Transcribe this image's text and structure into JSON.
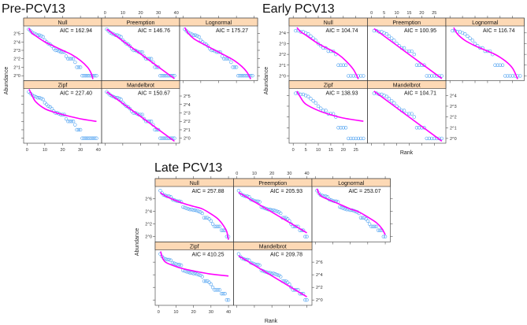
{
  "chart_data": [
    {
      "type": "scatter",
      "title": "Pre-PCV13",
      "ylabel": "Abundance",
      "xlabel": "",
      "xlim": [
        -1,
        41
      ],
      "ylim": [
        -0.4,
        5.7
      ],
      "x_ticks": [
        0,
        10,
        20,
        30,
        40
      ],
      "x_tick_labels": [
        "0",
        "10",
        "20",
        "30",
        "40"
      ],
      "y_ticks": [
        0,
        1,
        2,
        3,
        4,
        5
      ],
      "y_tick_labels": [
        "2^0",
        "2^1",
        "2^2",
        "2^3",
        "2^4",
        "2^5"
      ],
      "observed_log2_abundance": [
        5.5,
        5.3,
        5.1,
        5.0,
        4.9,
        4.8,
        4.8,
        4.7,
        4.6,
        4.2,
        4.0,
        3.8,
        3.7,
        3.5,
        3.2,
        3.0,
        3.0,
        2.9,
        2.8,
        2.8,
        2.8,
        2.3,
        2.0,
        2.0,
        2.0,
        2.0,
        1.6,
        1.0,
        1.0,
        1.0,
        0,
        0,
        0,
        0,
        0,
        0,
        0,
        0,
        0
      ],
      "panels": [
        {
          "name": "Null",
          "aic": "AIC = 162.94",
          "fit": [
            [
              1,
              5.6
            ],
            [
              3,
              5.0
            ],
            [
              5,
              4.7
            ],
            [
              10,
              4.0
            ],
            [
              15,
              3.5
            ],
            [
              20,
              3.0
            ],
            [
              25,
              2.5
            ],
            [
              30,
              1.8
            ],
            [
              34,
              1.0
            ],
            [
              36,
              0.3
            ],
            [
              37,
              -0.4
            ]
          ]
        },
        {
          "name": "Preemption",
          "aic": "AIC = 146.76",
          "fit": [
            [
              1,
              5.5
            ],
            [
              39,
              -0.35
            ]
          ]
        },
        {
          "name": "Lognormal",
          "aic": "AIC = 175.27",
          "fit": [
            [
              1,
              5.7
            ],
            [
              3,
              5.0
            ],
            [
              6,
              4.4
            ],
            [
              10,
              3.9
            ],
            [
              20,
              2.8
            ],
            [
              28,
              1.9
            ],
            [
              33,
              1.1
            ],
            [
              36,
              0.4
            ],
            [
              38,
              -0.4
            ]
          ]
        },
        {
          "name": "Zipf",
          "aic": "AIC = 227.40",
          "fit": [
            [
              1.2,
              5.8
            ],
            [
              3,
              5.0
            ],
            [
              5,
              4.3
            ],
            [
              10,
              3.5
            ],
            [
              15,
              3.1
            ],
            [
              20,
              2.8
            ],
            [
              30,
              2.3
            ],
            [
              39,
              2.0
            ]
          ]
        },
        {
          "name": "Mandelbrot",
          "aic": "AIC = 150.67",
          "fit": [
            [
              1,
              5.5
            ],
            [
              39,
              -0.35
            ]
          ]
        }
      ]
    },
    {
      "type": "scatter",
      "title": "Early PCV13",
      "ylabel": "Abundance",
      "xlabel": "Rank",
      "xlim": [
        -1,
        29
      ],
      "ylim": [
        -0.3,
        4.5
      ],
      "x_ticks": [
        0,
        5,
        10,
        15,
        20,
        25
      ],
      "x_tick_labels": [
        "0",
        "5",
        "10",
        "15",
        "20",
        "25"
      ],
      "y_ticks": [
        0,
        1,
        2,
        3,
        4
      ],
      "y_tick_labels": [
        "2^0",
        "2^1",
        "2^2",
        "2^3",
        "2^4"
      ],
      "observed_log2_abundance": [
        4.2,
        4.2,
        4.1,
        4.1,
        4.0,
        3.9,
        3.7,
        3.5,
        3.3,
        3.0,
        2.8,
        2.6,
        2.6,
        2.3,
        2.3,
        2.3,
        2.0,
        1.0,
        1.0,
        1.0,
        1.0,
        0,
        0,
        0,
        0,
        0,
        0,
        0
      ],
      "panels": [
        {
          "name": "Null",
          "aic": "AIC = 104.74",
          "fit": [
            [
              1.5,
              4.5
            ],
            [
              3,
              4.1
            ],
            [
              5,
              3.8
            ],
            [
              10,
              3.0
            ],
            [
              15,
              2.4
            ],
            [
              18,
              2.0
            ],
            [
              21,
              1.4
            ],
            [
              24,
              0.6
            ],
            [
              26,
              -0.3
            ]
          ]
        },
        {
          "name": "Preemption",
          "aic": "AIC = 100.95",
          "fit": [
            [
              1,
              4.4
            ],
            [
              28,
              -0.25
            ]
          ]
        },
        {
          "name": "Lognormal",
          "aic": "AIC = 116.74",
          "fit": [
            [
              1.5,
              4.5
            ],
            [
              3,
              3.9
            ],
            [
              6,
              3.3
            ],
            [
              10,
              2.8
            ],
            [
              14,
              2.4
            ],
            [
              18,
              2.0
            ],
            [
              22,
              1.4
            ],
            [
              25,
              0.7
            ],
            [
              27,
              -0.3
            ]
          ]
        },
        {
          "name": "Zipf",
          "aic": "AIC = 138.93",
          "fit": [
            [
              1.5,
              4.4
            ],
            [
              3,
              3.8
            ],
            [
              5,
              3.2
            ],
            [
              10,
              2.6
            ],
            [
              15,
              2.2
            ],
            [
              20,
              1.9
            ],
            [
              28,
              1.6
            ]
          ]
        },
        {
          "name": "Mandelbrot",
          "aic": "AIC = 104.71",
          "fit": [
            [
              1,
              4.4
            ],
            [
              28,
              -0.25
            ]
          ]
        }
      ]
    },
    {
      "type": "scatter",
      "title": "Late PCV13",
      "ylabel": "Abundance",
      "xlabel": "Rank",
      "xlim": [
        -1,
        42
      ],
      "ylim": [
        -0.6,
        7.7
      ],
      "x_ticks": [
        0,
        10,
        20,
        30,
        40
      ],
      "x_tick_labels": [
        "0",
        "10",
        "20",
        "30",
        "40"
      ],
      "y_ticks": [
        0,
        2,
        4,
        6
      ],
      "y_tick_labels": [
        "2^0",
        "2^2",
        "2^4",
        "2^6"
      ],
      "observed_log2_abundance": [
        7.3,
        6.9,
        6.6,
        6.5,
        6.4,
        6.4,
        6.3,
        5.9,
        5.8,
        5.7,
        5.6,
        5.6,
        5.5,
        4.7,
        4.6,
        4.5,
        4.4,
        4.3,
        4.3,
        4.2,
        4.2,
        4.1,
        4.0,
        3.9,
        3.7,
        3.0,
        3.0,
        3.0,
        2.8,
        2.5,
        2.0,
        1.6,
        1.6,
        1.6,
        1.6,
        1.0,
        1.0,
        1.0,
        0,
        0
      ],
      "panels": [
        {
          "name": "Null",
          "aic": "AIC = 257.88",
          "fit": [
            [
              1,
              7.0
            ],
            [
              3,
              6.6
            ],
            [
              5,
              6.3
            ],
            [
              10,
              5.7
            ],
            [
              15,
              5.2
            ],
            [
              20,
              4.8
            ],
            [
              25,
              4.4
            ],
            [
              30,
              3.6
            ],
            [
              34,
              2.8
            ],
            [
              37,
              1.8
            ],
            [
              39,
              0.8
            ],
            [
              40,
              -0.5
            ]
          ]
        },
        {
          "name": "Preemption",
          "aic": "AIC = 205.93",
          "fit": [
            [
              1,
              7.0
            ],
            [
              40,
              0.6
            ]
          ]
        },
        {
          "name": "Lognormal",
          "aic": "AIC = 253.07",
          "fit": [
            [
              1,
              7.6
            ],
            [
              2,
              6.9
            ],
            [
              4,
              6.3
            ],
            [
              10,
              5.6
            ],
            [
              15,
              5.0
            ],
            [
              20,
              4.4
            ],
            [
              25,
              3.9
            ],
            [
              30,
              3.1
            ],
            [
              35,
              2.2
            ],
            [
              38,
              1.3
            ],
            [
              40,
              0.3
            ]
          ]
        },
        {
          "name": "Zipf",
          "aic": "AIC = 410.25",
          "fit": [
            [
              1.2,
              7.7
            ],
            [
              2,
              6.9
            ],
            [
              4,
              6.0
            ],
            [
              10,
              5.3
            ],
            [
              15,
              4.9
            ],
            [
              20,
              4.6
            ],
            [
              30,
              4.1
            ],
            [
              40,
              3.8
            ]
          ]
        },
        {
          "name": "Mandelbrot",
          "aic": "AIC = 209.78",
          "fit": [
            [
              1,
              7.0
            ],
            [
              40,
              0.5
            ]
          ]
        }
      ]
    }
  ]
}
